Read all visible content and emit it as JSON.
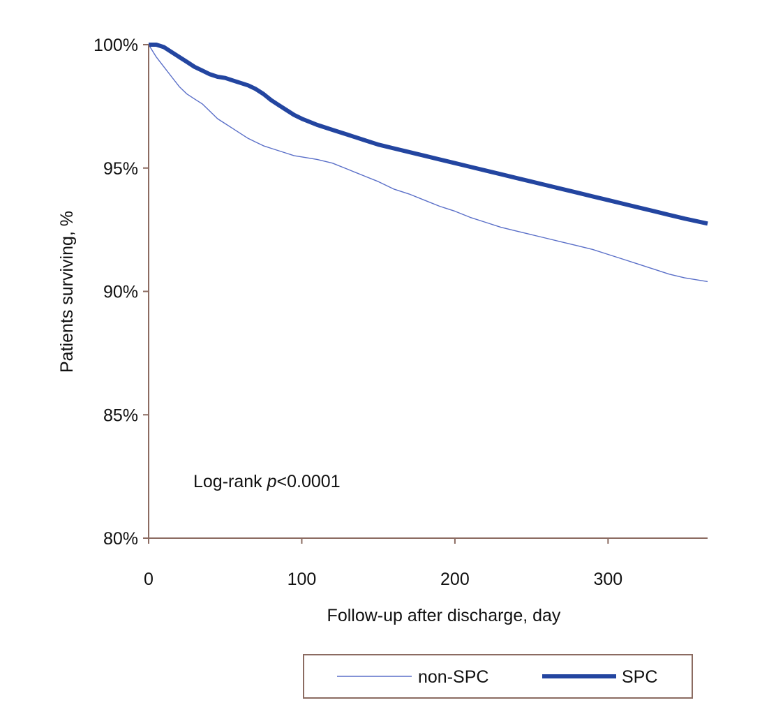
{
  "colors": {
    "axis": "#8b6b61",
    "series_thin": "#5a6fc8",
    "series_thick": "#2345a0",
    "legend_border": "#8b6b61",
    "text": "#111111"
  },
  "chart_data": {
    "type": "line",
    "title": "",
    "xlabel": "Follow-up after discharge, day",
    "ylabel": "Patients surviving, %",
    "xlim": [
      0,
      365
    ],
    "ylim": [
      80,
      100
    ],
    "x_ticks": [
      0,
      100,
      200,
      300
    ],
    "x_tick_labels": [
      "0",
      "100",
      "200",
      "300"
    ],
    "y_ticks": [
      80,
      85,
      90,
      95,
      100
    ],
    "y_tick_labels": [
      "80%",
      "85%",
      "90%",
      "95%",
      "100%"
    ],
    "grid": false,
    "legend_position": "bottom",
    "annotation": {
      "prefix": "Log-rank ",
      "italic": "p",
      "suffix": "<0.0001"
    },
    "series": [
      {
        "name": "non-SPC",
        "style": "thin",
        "x": [
          0,
          5,
          10,
          15,
          20,
          25,
          30,
          35,
          40,
          45,
          50,
          55,
          60,
          65,
          70,
          75,
          80,
          85,
          90,
          95,
          100,
          110,
          120,
          130,
          140,
          150,
          160,
          170,
          180,
          190,
          200,
          210,
          220,
          230,
          240,
          250,
          260,
          270,
          280,
          290,
          300,
          310,
          320,
          330,
          340,
          350,
          365
        ],
        "y": [
          100,
          99.5,
          99.1,
          98.7,
          98.3,
          98.0,
          97.8,
          97.6,
          97.3,
          97.0,
          96.8,
          96.6,
          96.4,
          96.2,
          96.05,
          95.9,
          95.8,
          95.7,
          95.6,
          95.5,
          95.45,
          95.35,
          95.2,
          94.95,
          94.7,
          94.45,
          94.15,
          93.95,
          93.7,
          93.45,
          93.25,
          93.0,
          92.8,
          92.6,
          92.45,
          92.3,
          92.15,
          92.0,
          91.85,
          91.7,
          91.5,
          91.3,
          91.1,
          90.9,
          90.7,
          90.55,
          90.4
        ]
      },
      {
        "name": "SPC",
        "style": "thick",
        "x": [
          0,
          5,
          10,
          15,
          20,
          25,
          30,
          35,
          40,
          45,
          50,
          55,
          60,
          65,
          70,
          75,
          80,
          85,
          90,
          95,
          100,
          110,
          120,
          130,
          140,
          150,
          160,
          170,
          180,
          190,
          200,
          210,
          220,
          230,
          240,
          250,
          260,
          270,
          280,
          290,
          300,
          310,
          320,
          330,
          340,
          350,
          365
        ],
        "y": [
          100,
          100,
          99.9,
          99.7,
          99.5,
          99.3,
          99.1,
          98.95,
          98.8,
          98.7,
          98.65,
          98.55,
          98.45,
          98.35,
          98.2,
          98.0,
          97.75,
          97.55,
          97.35,
          97.15,
          97.0,
          96.75,
          96.55,
          96.35,
          96.15,
          95.95,
          95.8,
          95.65,
          95.5,
          95.35,
          95.2,
          95.05,
          94.9,
          94.75,
          94.6,
          94.45,
          94.3,
          94.15,
          94.0,
          93.85,
          93.7,
          93.55,
          93.4,
          93.25,
          93.1,
          92.95,
          92.75
        ]
      }
    ]
  }
}
